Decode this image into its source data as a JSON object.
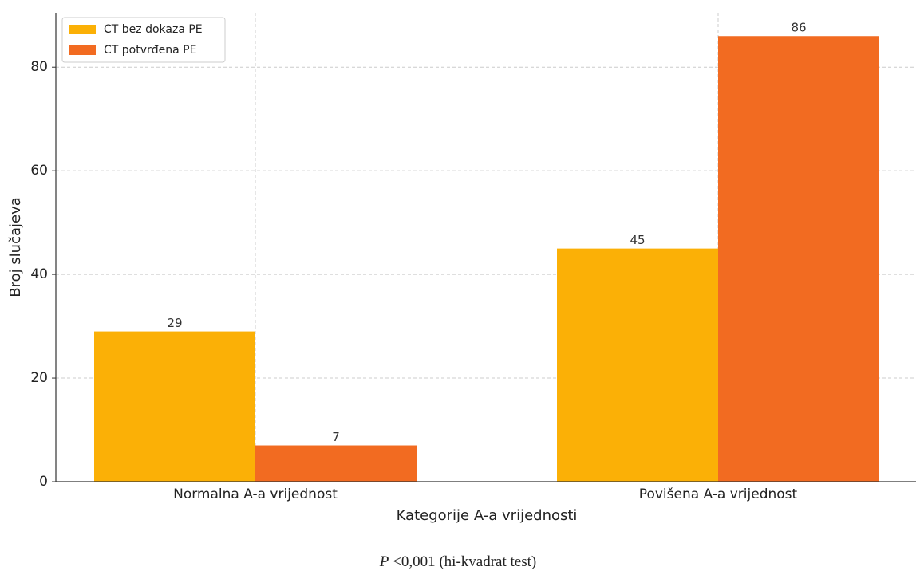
{
  "chart_data": {
    "type": "bar",
    "categories": [
      "Normalna A-a vrijednost",
      "Povišena A-a vrijednost"
    ],
    "series": [
      {
        "name": "CT bez dokaza PE",
        "color": "#fbb006",
        "values": [
          29,
          45
        ]
      },
      {
        "name": "CT potvrđena PE",
        "color": "#f26b21",
        "values": [
          7,
          86
        ]
      }
    ],
    "x_label": "Kategorije A-a vrijednosti",
    "y_label": "Broj slučajeva",
    "ylim": [
      0,
      90.5
    ],
    "yticks": [
      0,
      20,
      40,
      60,
      80
    ],
    "grid": true,
    "legend": "upper left",
    "footnote": {
      "variable": "P",
      "text": "<0,001 (hi-kvadrat test)"
    }
  }
}
